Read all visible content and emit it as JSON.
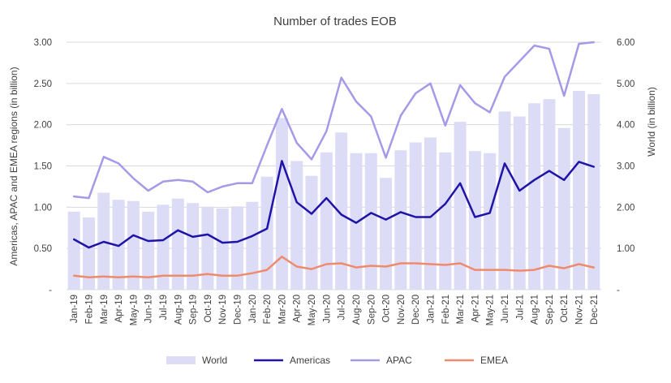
{
  "chart_data": {
    "type": "bar",
    "title": "Number of trades EOB",
    "ylabel": "Americas, APAC and EMEA regions (in billion)",
    "y2label": "World (in billion)",
    "ylim": [
      0,
      3.0
    ],
    "y2lim": [
      0,
      6.0
    ],
    "y_ticks": [
      "-",
      "0.50",
      "1.00",
      "1.50",
      "2.00",
      "2.50",
      "3.00"
    ],
    "y2_ticks": [
      "-",
      "1.00",
      "2.00",
      "3.00",
      "4.00",
      "5.00",
      "6.00"
    ],
    "grid": true,
    "legend_position": "bottom",
    "categories": [
      "Jan-19",
      "Feb-19",
      "Mar-19",
      "Apr-19",
      "May-19",
      "Jun-19",
      "Jul-19",
      "Aug-19",
      "Sep-19",
      "Oct-19",
      "Nov-19",
      "Dec-19",
      "Jan-20",
      "Feb-20",
      "Mar-20",
      "Apr-20",
      "May-20",
      "Jun-20",
      "Jul-20",
      "Aug-20",
      "Sep-20",
      "Oct-20",
      "Nov-20",
      "Dec-20",
      "Jan-21",
      "Feb-21",
      "Mar-21",
      "Apr-21",
      "May-21",
      "Jun-21",
      "Jul-21",
      "Aug-21",
      "Sep-21",
      "Oct-21",
      "Nov-21",
      "Dec-21"
    ],
    "series": [
      {
        "name": "World",
        "kind": "bar",
        "axis": "right",
        "color": "#dcdcf6",
        "values": [
          1.89,
          1.75,
          2.35,
          2.18,
          2.15,
          1.89,
          2.06,
          2.21,
          2.1,
          2.01,
          1.97,
          2.02,
          2.13,
          2.74,
          4.16,
          3.12,
          2.76,
          3.33,
          3.81,
          3.31,
          3.31,
          2.71,
          3.38,
          3.57,
          3.69,
          3.33,
          4.07,
          3.36,
          3.31,
          4.32,
          4.2,
          4.52,
          4.62,
          3.92,
          4.82,
          4.74
        ]
      },
      {
        "name": "Americas",
        "kind": "line",
        "axis": "left",
        "color": "#1f13a8",
        "values": [
          0.61,
          0.51,
          0.58,
          0.53,
          0.66,
          0.59,
          0.6,
          0.72,
          0.64,
          0.67,
          0.57,
          0.58,
          0.65,
          0.74,
          1.56,
          1.06,
          0.92,
          1.11,
          0.91,
          0.81,
          0.93,
          0.85,
          0.94,
          0.88,
          0.88,
          1.04,
          1.29,
          0.88,
          0.93,
          1.53,
          1.2,
          1.33,
          1.44,
          1.33,
          1.55,
          1.49
        ]
      },
      {
        "name": "APAC",
        "kind": "line",
        "axis": "left",
        "color": "#a49ae8",
        "values": [
          1.13,
          1.11,
          1.61,
          1.53,
          1.35,
          1.2,
          1.31,
          1.33,
          1.31,
          1.18,
          1.25,
          1.29,
          1.29,
          1.75,
          2.19,
          1.78,
          1.58,
          1.92,
          2.57,
          2.28,
          2.1,
          1.6,
          2.11,
          2.38,
          2.5,
          1.99,
          2.48,
          2.26,
          2.15,
          2.58,
          2.77,
          2.96,
          2.92,
          2.35,
          2.98,
          3.0
        ]
      },
      {
        "name": "EMEA",
        "kind": "line",
        "axis": "left",
        "color": "#f08a6c",
        "values": [
          0.17,
          0.15,
          0.16,
          0.15,
          0.16,
          0.15,
          0.17,
          0.17,
          0.17,
          0.19,
          0.17,
          0.17,
          0.2,
          0.24,
          0.4,
          0.28,
          0.25,
          0.31,
          0.32,
          0.27,
          0.29,
          0.28,
          0.32,
          0.32,
          0.31,
          0.3,
          0.32,
          0.24,
          0.24,
          0.24,
          0.23,
          0.24,
          0.29,
          0.26,
          0.31,
          0.27
        ]
      }
    ]
  }
}
